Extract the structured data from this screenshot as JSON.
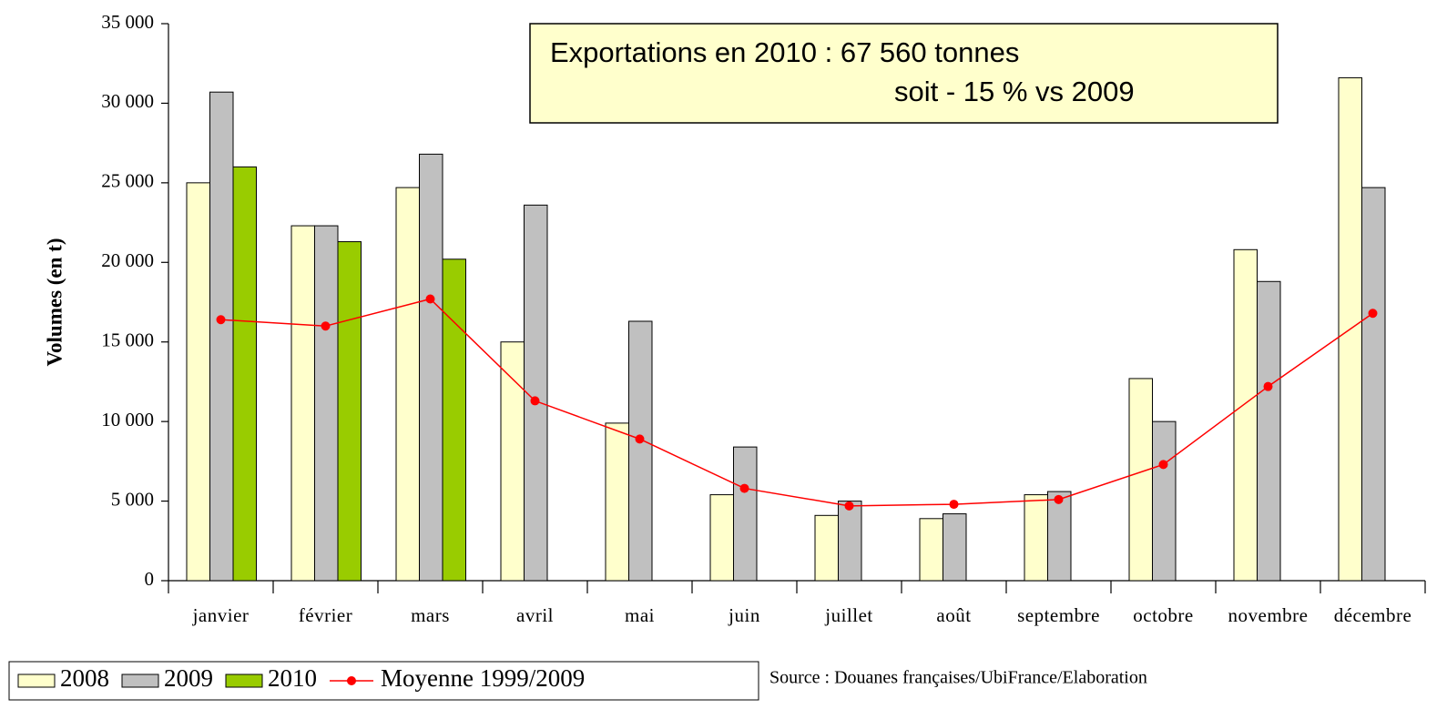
{
  "chart_data": {
    "type": "bar",
    "annotation": [
      "Exportations en 2010 : 67 560 tonnes",
      "soit - 15 % vs 2009"
    ],
    "source": "Source : Douanes françaises/UbiFrance/Elaboration",
    "ylabel": "Volumes (en t)",
    "categories": [
      "janvier",
      "février",
      "mars",
      "avril",
      "mai",
      "juin",
      "juillet",
      "août",
      "septembre",
      "octobre",
      "novembre",
      "décembre"
    ],
    "series": [
      {
        "name": "2008",
        "color": "#ffffcc",
        "values": [
          25000,
          22300,
          24700,
          15000,
          9900,
          5400,
          4100,
          3900,
          5400,
          12700,
          20800,
          31600
        ]
      },
      {
        "name": "2009",
        "color": "#c0c0c0",
        "values": [
          30700,
          22300,
          26800,
          23600,
          16300,
          8400,
          5000,
          4200,
          5600,
          10000,
          18800,
          24700
        ]
      },
      {
        "name": "2010",
        "color": "#99cc00",
        "values": [
          26000,
          21300,
          20200,
          null,
          null,
          null,
          null,
          null,
          null,
          null,
          null,
          null
        ]
      },
      {
        "name": "Moyenne 1999/2009",
        "type": "line",
        "color": "#ff0000",
        "values": [
          16400,
          16000,
          17700,
          11300,
          8900,
          5800,
          4700,
          4800,
          5100,
          7300,
          12200,
          16800
        ]
      }
    ],
    "ylim": [
      0,
      35000
    ],
    "yticks": [
      0,
      {
        "value": 5000,
        "label": "5 000"
      },
      {
        "value": 10000,
        "label": "10 000"
      },
      {
        "value": 15000,
        "label": "15 000"
      },
      {
        "value": 20000,
        "label": "20 000"
      },
      {
        "value": 25000,
        "label": "25 000"
      },
      {
        "value": 30000,
        "label": "30 000"
      },
      {
        "value": 35000,
        "label": "35 000"
      }
    ],
    "grid": false
  }
}
